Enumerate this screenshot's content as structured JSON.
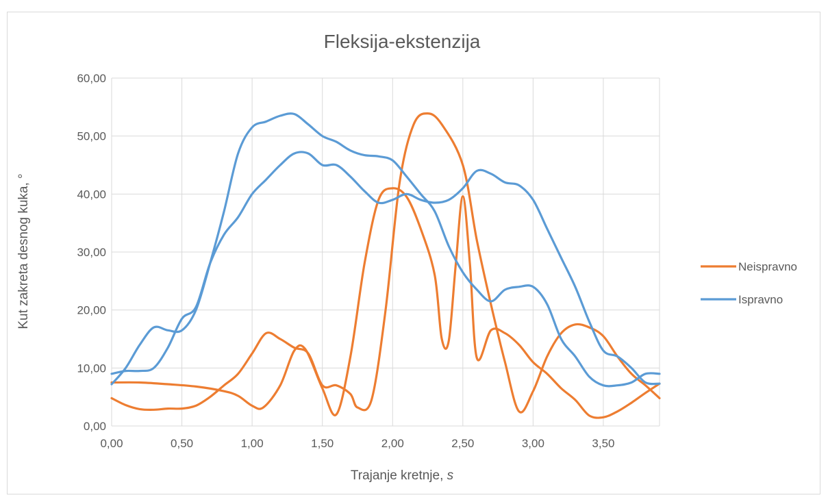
{
  "chart_data": {
    "type": "line",
    "title": "Fleksija-ekstenzija",
    "xlabel": "Trajanje kretnje, ",
    "xlabel_unit": "s",
    "ylabel": "Kut zakreta desnog kuka, °",
    "xlim": [
      0,
      3.9
    ],
    "ylim": [
      0,
      60
    ],
    "x_ticks": [
      "0,00",
      "0,50",
      "1,00",
      "1,50",
      "2,00",
      "2,50",
      "3,00",
      "3,50"
    ],
    "y_ticks": [
      "0,00",
      "10,00",
      "20,00",
      "30,00",
      "40,00",
      "50,00",
      "60,00"
    ],
    "grid": true,
    "legend_position": "right",
    "series": [
      {
        "name": "Neispravno",
        "color": "#ED7D31",
        "points": [
          [
            0.0,
            7.5
          ],
          [
            0.2,
            7.5
          ],
          [
            0.4,
            7.2
          ],
          [
            0.6,
            6.8
          ],
          [
            0.8,
            6.0
          ],
          [
            0.9,
            5.2
          ],
          [
            1.0,
            3.5
          ],
          [
            1.08,
            3.2
          ],
          [
            1.2,
            7.0
          ],
          [
            1.3,
            13.0
          ],
          [
            1.38,
            13.2
          ],
          [
            1.5,
            6.5
          ],
          [
            1.6,
            2.0
          ],
          [
            1.7,
            12.0
          ],
          [
            1.8,
            28.0
          ],
          [
            1.9,
            39.0
          ],
          [
            2.0,
            41.0
          ],
          [
            2.1,
            39.5
          ],
          [
            2.2,
            34.0
          ],
          [
            2.3,
            26.0
          ],
          [
            2.35,
            15.0
          ],
          [
            2.4,
            14.7
          ],
          [
            2.45,
            28.0
          ],
          [
            2.5,
            39.6
          ],
          [
            2.55,
            28.0
          ],
          [
            2.6,
            11.7
          ],
          [
            2.7,
            16.5
          ],
          [
            2.8,
            16.0
          ],
          [
            2.9,
            14.0
          ],
          [
            3.0,
            11.0
          ],
          [
            3.1,
            9.0
          ],
          [
            3.2,
            6.5
          ],
          [
            3.3,
            4.5
          ],
          [
            3.4,
            1.8
          ],
          [
            3.5,
            1.5
          ],
          [
            3.6,
            2.5
          ],
          [
            3.7,
            4.0
          ],
          [
            3.8,
            5.7
          ],
          [
            3.9,
            7.3
          ]
        ]
      },
      {
        "name": "Neispravno",
        "color": "#ED7D31",
        "points": [
          [
            0.0,
            4.8
          ],
          [
            0.1,
            3.6
          ],
          [
            0.2,
            2.9
          ],
          [
            0.3,
            2.8
          ],
          [
            0.4,
            3.0
          ],
          [
            0.5,
            3.0
          ],
          [
            0.6,
            3.5
          ],
          [
            0.7,
            5.0
          ],
          [
            0.8,
            7.0
          ],
          [
            0.9,
            9.0
          ],
          [
            1.0,
            12.5
          ],
          [
            1.1,
            16.0
          ],
          [
            1.2,
            15.0
          ],
          [
            1.3,
            13.5
          ],
          [
            1.4,
            12.5
          ],
          [
            1.5,
            7.0
          ],
          [
            1.6,
            7.0
          ],
          [
            1.7,
            5.5
          ],
          [
            1.75,
            3.2
          ],
          [
            1.85,
            4.5
          ],
          [
            1.95,
            20.0
          ],
          [
            2.05,
            42.0
          ],
          [
            2.15,
            52.0
          ],
          [
            2.25,
            53.9
          ],
          [
            2.35,
            52.0
          ],
          [
            2.5,
            45.0
          ],
          [
            2.6,
            32.0
          ],
          [
            2.7,
            21.0
          ],
          [
            2.8,
            11.0
          ],
          [
            2.9,
            2.5
          ],
          [
            3.0,
            6.0
          ],
          [
            3.1,
            12.0
          ],
          [
            3.2,
            16.0
          ],
          [
            3.3,
            17.5
          ],
          [
            3.4,
            17.0
          ],
          [
            3.5,
            15.5
          ],
          [
            3.6,
            12.0
          ],
          [
            3.7,
            9.0
          ],
          [
            3.8,
            7.0
          ],
          [
            3.9,
            4.8
          ]
        ]
      },
      {
        "name": "Ispravno",
        "color": "#5B9BD5",
        "points": [
          [
            0.0,
            9.0
          ],
          [
            0.1,
            9.5
          ],
          [
            0.2,
            9.5
          ],
          [
            0.3,
            10.0
          ],
          [
            0.4,
            13.5
          ],
          [
            0.5,
            18.5
          ],
          [
            0.6,
            20.5
          ],
          [
            0.7,
            28.0
          ],
          [
            0.8,
            33.0
          ],
          [
            0.9,
            36.0
          ],
          [
            1.0,
            40.0
          ],
          [
            1.1,
            42.5
          ],
          [
            1.2,
            45.0
          ],
          [
            1.3,
            47.0
          ],
          [
            1.4,
            47.0
          ],
          [
            1.5,
            45.0
          ],
          [
            1.6,
            45.0
          ],
          [
            1.7,
            43.0
          ],
          [
            1.8,
            40.5
          ],
          [
            1.9,
            38.5
          ],
          [
            2.0,
            39.0
          ],
          [
            2.1,
            40.0
          ],
          [
            2.2,
            39.0
          ],
          [
            2.3,
            38.5
          ],
          [
            2.4,
            39.0
          ],
          [
            2.5,
            41.0
          ],
          [
            2.6,
            44.0
          ],
          [
            2.7,
            43.5
          ],
          [
            2.8,
            42.0
          ],
          [
            2.9,
            41.5
          ],
          [
            3.0,
            39.0
          ],
          [
            3.1,
            34.0
          ],
          [
            3.2,
            29.0
          ],
          [
            3.3,
            24.0
          ],
          [
            3.4,
            18.0
          ],
          [
            3.5,
            13.0
          ],
          [
            3.6,
            12.0
          ],
          [
            3.7,
            10.0
          ],
          [
            3.8,
            7.5
          ],
          [
            3.9,
            7.3
          ]
        ]
      },
      {
        "name": "Ispravno",
        "color": "#5B9BD5",
        "points": [
          [
            0.0,
            7.2
          ],
          [
            0.1,
            10.0
          ],
          [
            0.2,
            14.0
          ],
          [
            0.3,
            17.0
          ],
          [
            0.4,
            16.5
          ],
          [
            0.5,
            16.5
          ],
          [
            0.6,
            20.0
          ],
          [
            0.7,
            28.0
          ],
          [
            0.8,
            37.0
          ],
          [
            0.9,
            47.0
          ],
          [
            1.0,
            51.5
          ],
          [
            1.1,
            52.5
          ],
          [
            1.2,
            53.5
          ],
          [
            1.3,
            53.8
          ],
          [
            1.4,
            52.0
          ],
          [
            1.5,
            50.0
          ],
          [
            1.6,
            49.0
          ],
          [
            1.7,
            47.5
          ],
          [
            1.8,
            46.7
          ],
          [
            1.9,
            46.5
          ],
          [
            2.0,
            45.8
          ],
          [
            2.1,
            43.0
          ],
          [
            2.2,
            40.0
          ],
          [
            2.3,
            37.0
          ],
          [
            2.4,
            31.0
          ],
          [
            2.5,
            26.5
          ],
          [
            2.6,
            23.5
          ],
          [
            2.7,
            21.5
          ],
          [
            2.8,
            23.5
          ],
          [
            2.9,
            24.0
          ],
          [
            3.0,
            24.0
          ],
          [
            3.1,
            21.0
          ],
          [
            3.2,
            15.0
          ],
          [
            3.3,
            12.0
          ],
          [
            3.4,
            8.5
          ],
          [
            3.5,
            7.0
          ],
          [
            3.6,
            7.0
          ],
          [
            3.7,
            7.5
          ],
          [
            3.8,
            9.0
          ],
          [
            3.9,
            9.0
          ]
        ]
      }
    ],
    "legend": [
      {
        "name": "Neispravno",
        "color": "#ED7D31"
      },
      {
        "name": "Ispravno",
        "color": "#5B9BD5"
      }
    ]
  }
}
